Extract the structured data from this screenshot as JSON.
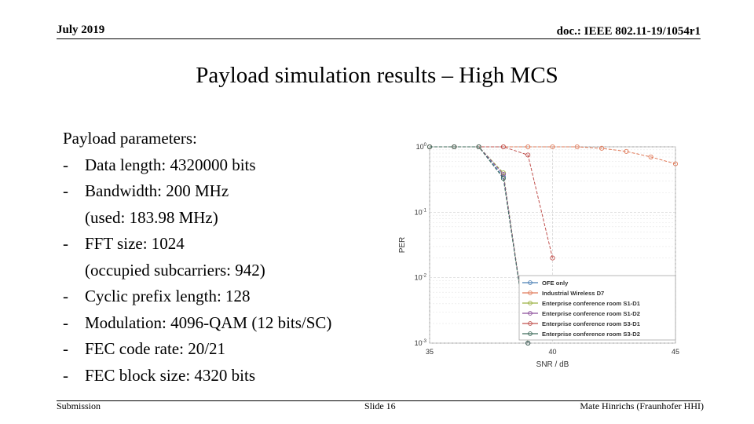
{
  "header": {
    "date": "July 2019",
    "doc": "doc.: IEEE 802.11-19/1054r1"
  },
  "title": "Payload simulation results – High MCS",
  "body": {
    "heading": "Payload parameters:",
    "items": [
      {
        "dash": "-",
        "text": "Data length: 4320000 bits"
      },
      {
        "dash": "-",
        "text": "Bandwidth: 200 MHz",
        "sub": "(used: 183.98 MHz)"
      },
      {
        "dash": "-",
        "text": "FFT size: 1024",
        "sub": "(occupied subcarriers: 942)"
      },
      {
        "dash": "-",
        "text": "Cyclic prefix length: 128"
      },
      {
        "dash": "-",
        "text": "Modulation: 4096-QAM (12 bits/SC)"
      },
      {
        "dash": "-",
        "text": "FEC code rate: 20/21"
      },
      {
        "dash": "-",
        "text": "FEC block size: 4320 bits"
      }
    ]
  },
  "footer": {
    "left": "Submission",
    "center": "Slide 16",
    "right": "Mate Hinrichs (Fraunhofer HHI)"
  },
  "chart_data": {
    "type": "line",
    "xlabel": "SNR / dB",
    "ylabel": "PER",
    "xlim": [
      35,
      45
    ],
    "ylim": [
      0.001,
      1
    ],
    "yscale": "log",
    "xticks": [
      "35",
      "40",
      "45"
    ],
    "yticks": [
      "10^0",
      "10^-1",
      "10^-2",
      "10^-3"
    ],
    "grid": true,
    "legend": "bottom-right",
    "series": [
      {
        "name": "OFE only",
        "color": "#4a7fb5",
        "x": [
          35,
          36,
          37,
          38,
          39
        ],
        "y": [
          1,
          1,
          1,
          0.35,
          0.001
        ]
      },
      {
        "name": "Industrial Wireless D7",
        "color": "#e07b5a",
        "x": [
          35,
          36,
          37,
          38,
          39,
          40,
          41,
          42,
          43,
          44,
          45
        ],
        "y": [
          1,
          1,
          1,
          1,
          1,
          1,
          1,
          0.95,
          0.85,
          0.7,
          0.55
        ]
      },
      {
        "name": "Enterprise conference room S1-D1",
        "color": "#9ab040",
        "x": [
          35,
          36,
          37,
          38,
          39
        ],
        "y": [
          1,
          1,
          1,
          0.4,
          0.001
        ]
      },
      {
        "name": "Enterprise conference room S1-D2",
        "color": "#8b4d9a",
        "x": [
          35,
          36,
          37,
          38,
          39
        ],
        "y": [
          1,
          1,
          1,
          0.38,
          0.001
        ]
      },
      {
        "name": "Enterprise conference room S3-D1",
        "color": "#c0504d",
        "x": [
          35,
          36,
          37,
          38,
          39,
          40
        ],
        "y": [
          1,
          1,
          1,
          1,
          0.75,
          0.02
        ]
      },
      {
        "name": "Enterprise conference room S3-D2",
        "color": "#3d6b5a",
        "x": [
          35,
          36,
          37,
          38,
          39
        ],
        "y": [
          1,
          1,
          1,
          0.33,
          0.001
        ]
      }
    ]
  }
}
